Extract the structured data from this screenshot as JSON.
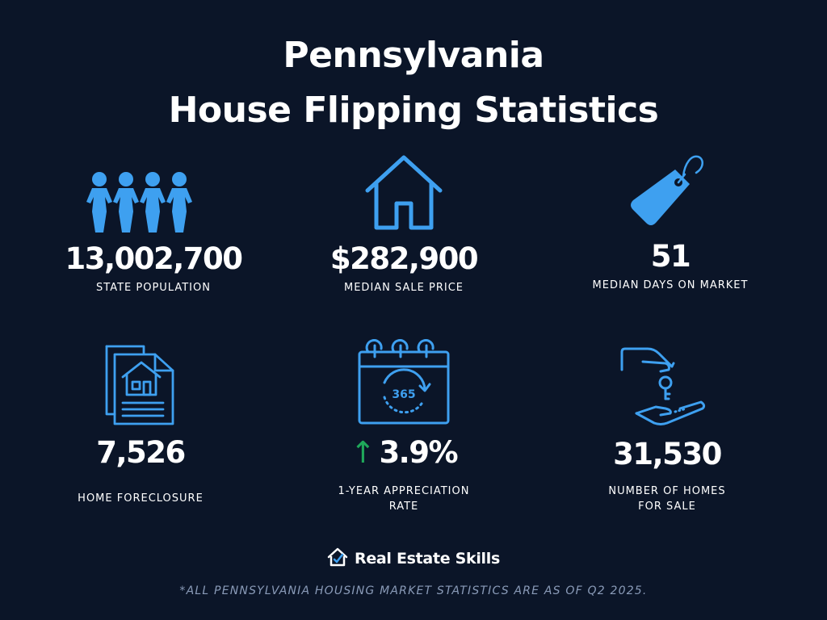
{
  "header": {
    "title_line1": "Pennsylvania",
    "title_line2": "House Flipping Statistics"
  },
  "stats": {
    "population": {
      "value": "13,002,700",
      "label": "STATE POPULATION",
      "icon": "people-group-icon"
    },
    "median_sale_price": {
      "value": "$282,900",
      "label": "MEDIAN SALE PRICE",
      "icon": "house-icon"
    },
    "median_days_on_market": {
      "value": "51",
      "label": "MEDIAN DAYS ON MARKET",
      "icon": "price-tag-icon"
    },
    "home_foreclosure": {
      "value": "7,526",
      "label": "HOME FORECLOSURE",
      "icon": "document-house-icon"
    },
    "appreciation_rate": {
      "arrow": "↑",
      "value": "3.9%",
      "label_line1": "1-YEAR APPRECIATION",
      "label_line2": "RATE",
      "icon": "calendar-365-icon"
    },
    "homes_for_sale": {
      "value": "31,530",
      "label_line1": "NUMBER OF HOMES",
      "label_line2": "FOR SALE",
      "icon": "key-handoff-icon"
    }
  },
  "brand": {
    "name": "Real Estate Skills",
    "icon": "house-check-logo-icon"
  },
  "footnote": "*ALL PENNSYLVANIA HOUSING MARKET STATISTICS ARE AS OF Q2 2025.",
  "colors": {
    "background": "#0b1528",
    "icon_blue": "#3ea0f0",
    "arrow_green": "#1fa85a",
    "text": "#ffffff",
    "footnote": "#8a9bb8"
  }
}
